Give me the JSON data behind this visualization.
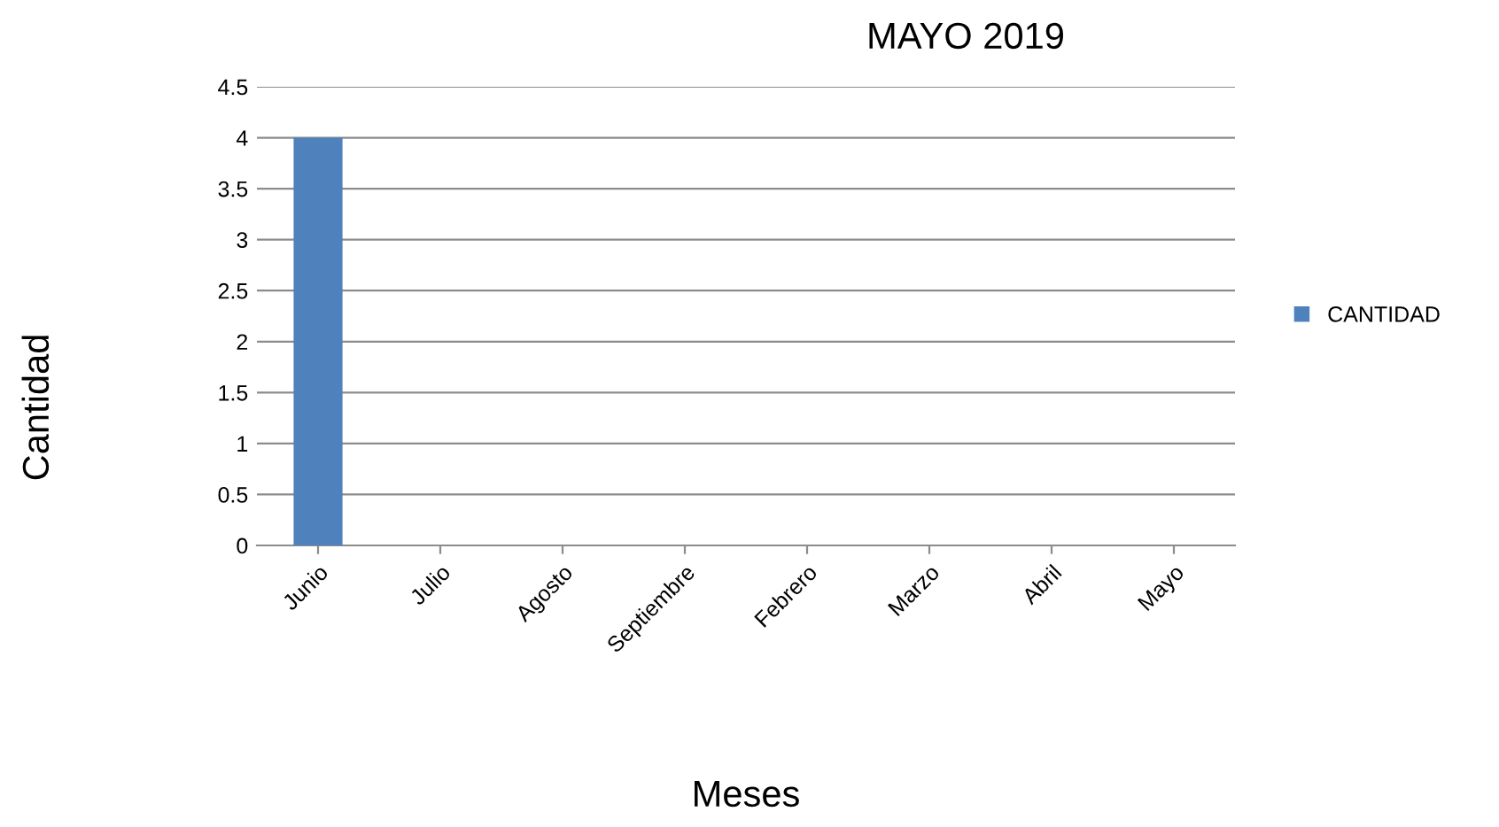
{
  "chart_data": {
    "type": "bar",
    "title": "MAYO 2019",
    "xlabel": "Meses",
    "ylabel": "Cantidad",
    "categories": [
      "Junio",
      "Julio",
      "Agosto",
      "Septiembre",
      "Febrero",
      "Marzo",
      "Abril",
      "Mayo"
    ],
    "series": [
      {
        "name": "CANTIDAD",
        "color": "#4f81bd",
        "values": [
          4,
          0,
          0,
          0,
          0,
          0,
          0,
          0
        ]
      }
    ],
    "ylim": [
      0,
      4.5
    ],
    "yticks": [
      0,
      0.5,
      1,
      1.5,
      2,
      2.5,
      3,
      3.5,
      4,
      4.5
    ],
    "grid": "y",
    "legend": "right"
  }
}
